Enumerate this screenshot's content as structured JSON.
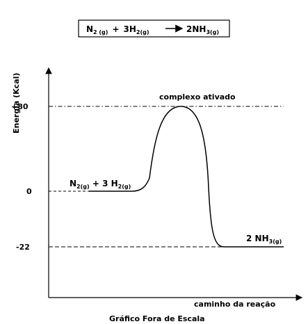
{
  "equation": {
    "n2": "N",
    "n2_sub": "2 (g)",
    "plus1": "+",
    "h2": "3H",
    "h2_sub": "2(g)",
    "nh3": "2NH",
    "nh3_sub": "3(g)"
  },
  "axes": {
    "y_label": "Energia (Kcal)",
    "x_label": "caminho da reação",
    "ticks": [
      "+80",
      "0",
      "-22"
    ]
  },
  "annotations": {
    "peak_label": "complexo ativado",
    "reactants": "N",
    "reactants_sub1": "2(g)",
    "reactants_mid": " + 3 H",
    "reactants_sub2": "2(g)",
    "products": "2 NH",
    "products_sub": "3(g)"
  },
  "footer": "Gráfico Fora de Escala",
  "energy_levels": {
    "reactants": 0,
    "activated_complex": 80,
    "products": -22
  }
}
